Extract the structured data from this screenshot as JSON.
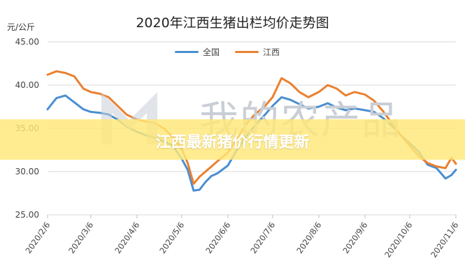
{
  "chart_data": {
    "type": "line",
    "title": "2020年江西生猪出栏均价走势图",
    "ylabel": "元/公斤",
    "xlabel": "",
    "ylim": [
      25,
      45
    ],
    "yticks": [
      "25.00",
      "30.00",
      "35.00",
      "40.00",
      "45.00"
    ],
    "xlim": [
      "2020/2/6",
      "2020/11/6"
    ],
    "xticks": [
      "2020/2/6",
      "2020/3/6",
      "2020/4/6",
      "2020/5/6",
      "2020/6/6",
      "2020/7/6",
      "2020/8/6",
      "2020/9/6",
      "2020/10/6",
      "2020/11/6"
    ],
    "grid": "horizontal",
    "legend_position": "top-center",
    "series": [
      {
        "name": "全国",
        "color": "#4a8fd0",
        "x": [
          "2020/2/6",
          "2020/2/12",
          "2020/2/18",
          "2020/2/24",
          "2020/3/1",
          "2020/3/6",
          "2020/3/12",
          "2020/3/18",
          "2020/3/24",
          "2020/3/30",
          "2020/4/6",
          "2020/4/12",
          "2020/4/18",
          "2020/4/24",
          "2020/4/30",
          "2020/5/6",
          "2020/5/10",
          "2020/5/14",
          "2020/5/18",
          "2020/5/22",
          "2020/5/26",
          "2020/5/30",
          "2020/6/6",
          "2020/6/12",
          "2020/6/18",
          "2020/6/24",
          "2020/7/1",
          "2020/7/6",
          "2020/7/12",
          "2020/7/18",
          "2020/7/24",
          "2020/7/30",
          "2020/8/6",
          "2020/8/12",
          "2020/8/18",
          "2020/8/24",
          "2020/8/30",
          "2020/9/6",
          "2020/9/12",
          "2020/9/18",
          "2020/9/24",
          "2020/9/30",
          "2020/10/6",
          "2020/10/12",
          "2020/10/18",
          "2020/10/24",
          "2020/10/30",
          "2020/11/3",
          "2020/11/6"
        ],
        "values": [
          37.2,
          38.5,
          38.8,
          38.0,
          37.2,
          36.9,
          36.8,
          36.6,
          36.0,
          35.2,
          34.6,
          34.2,
          33.9,
          33.5,
          33.0,
          31.5,
          30.2,
          27.8,
          27.9,
          28.8,
          29.5,
          29.8,
          30.7,
          32.5,
          34.0,
          35.3,
          36.6,
          37.6,
          38.6,
          38.3,
          37.8,
          37.3,
          37.5,
          37.9,
          37.4,
          37.1,
          37.3,
          37.1,
          36.9,
          36.2,
          35.3,
          34.2,
          33.3,
          32.3,
          30.8,
          30.4,
          29.2,
          29.6,
          30.2
        ]
      },
      {
        "name": "江西",
        "color": "#ea8030",
        "x": [
          "2020/2/6",
          "2020/2/12",
          "2020/2/18",
          "2020/2/24",
          "2020/3/1",
          "2020/3/6",
          "2020/3/12",
          "2020/3/18",
          "2020/3/24",
          "2020/3/30",
          "2020/4/6",
          "2020/4/12",
          "2020/4/18",
          "2020/4/24",
          "2020/4/30",
          "2020/5/6",
          "2020/5/10",
          "2020/5/14",
          "2020/5/18",
          "2020/5/22",
          "2020/5/26",
          "2020/5/30",
          "2020/6/6",
          "2020/6/12",
          "2020/6/18",
          "2020/6/24",
          "2020/7/1",
          "2020/7/6",
          "2020/7/12",
          "2020/7/18",
          "2020/7/24",
          "2020/7/30",
          "2020/8/6",
          "2020/8/12",
          "2020/8/18",
          "2020/8/24",
          "2020/8/30",
          "2020/9/6",
          "2020/9/12",
          "2020/9/18",
          "2020/9/24",
          "2020/9/30",
          "2020/10/6",
          "2020/10/12",
          "2020/10/18",
          "2020/10/24",
          "2020/10/30",
          "2020/11/3",
          "2020/11/6"
        ],
        "values": [
          41.2,
          41.6,
          41.4,
          41.0,
          39.6,
          39.2,
          39.0,
          38.6,
          37.6,
          36.6,
          36.0,
          35.8,
          35.6,
          35.0,
          34.0,
          32.6,
          31.0,
          28.6,
          29.4,
          30.0,
          30.6,
          31.2,
          32.2,
          33.8,
          35.4,
          36.6,
          37.6,
          38.6,
          40.8,
          40.2,
          39.2,
          38.6,
          39.2,
          40.0,
          39.6,
          38.8,
          39.2,
          38.9,
          38.2,
          37.0,
          35.6,
          34.2,
          33.0,
          31.8,
          31.0,
          30.6,
          30.4,
          31.6,
          30.9
        ]
      }
    ]
  },
  "legend": {
    "national_label": "全国",
    "jiangxi_label": "江西",
    "national_color": "#4a8fd0",
    "jiangxi_color": "#ea8030"
  },
  "watermark": {
    "text": "我的农产品"
  },
  "banner": {
    "text": "江西最新猪价行情更新",
    "color": "#ffe878"
  }
}
